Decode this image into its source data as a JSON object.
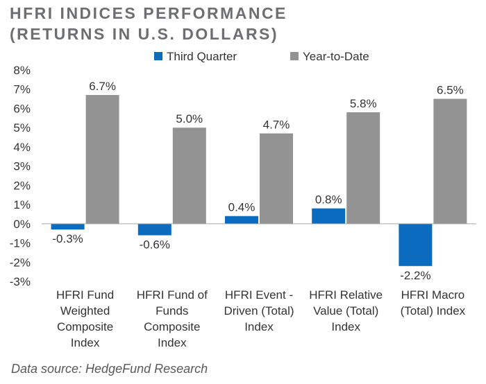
{
  "title_line1": "HFRI INDICES PERFORMANCE",
  "title_line2": "(RETURNS IN U.S. DOLLARS)",
  "source": "Data source: HedgeFund Research",
  "chart_data": {
    "type": "bar",
    "title": "HFRI INDICES PERFORMANCE (RETURNS IN U.S. DOLLARS)",
    "categories": [
      [
        "HFRI Fund",
        "Weighted",
        "Composite",
        "Index"
      ],
      [
        "HFRI Fund of",
        "Funds",
        "Composite",
        "Index"
      ],
      [
        "HFRI Event -",
        "Driven (Total)",
        "Index"
      ],
      [
        "HFRI Relative",
        "Value (Total)",
        "Index"
      ],
      [
        "HFRI Macro",
        "(Total) Index"
      ]
    ],
    "series": [
      {
        "name": "Third Quarter",
        "color": "#0b6bbf",
        "values": [
          -0.3,
          -0.6,
          0.4,
          0.8,
          -2.2
        ],
        "labels": [
          "-0.3%",
          "-0.6%",
          "0.4%",
          "0.8%",
          "-2.2%"
        ]
      },
      {
        "name": "Year-to-Date",
        "color": "#939393",
        "values": [
          6.7,
          5.0,
          4.7,
          5.8,
          6.5
        ],
        "labels": [
          "6.7%",
          "5.0%",
          "4.7%",
          "5.8%",
          "6.5%"
        ]
      }
    ],
    "ylim": [
      -3,
      8
    ],
    "yticks": [
      -3,
      -2,
      -1,
      0,
      1,
      2,
      3,
      4,
      5,
      6,
      7,
      8
    ],
    "ytick_labels": [
      "-3%",
      "-2%",
      "-1%",
      "0%",
      "1%",
      "2%",
      "3%",
      "4%",
      "5%",
      "6%",
      "7%",
      "8%"
    ],
    "xlabel": "",
    "ylabel": "",
    "grid": false,
    "legend_position": "top"
  }
}
